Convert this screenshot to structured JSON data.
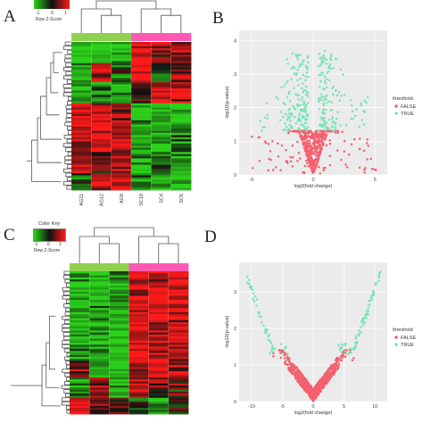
{
  "panels": {
    "a": {
      "letter": "A"
    },
    "b": {
      "letter": "B"
    },
    "c": {
      "letter": "C"
    },
    "d": {
      "letter": "D"
    }
  },
  "color_key_a": {
    "ticks": [
      "-1",
      "0",
      "1"
    ],
    "caption": "Row Z-Score",
    "colors": {
      "low": "#2bd11a",
      "mid": "#111111",
      "high": "#ff1a1a"
    }
  },
  "color_key_c": {
    "title": "Color Key",
    "ticks": [
      "-1",
      "0",
      "1"
    ],
    "caption": "Row Z-Score",
    "colors": {
      "low": "#2bd11a",
      "mid": "#111111",
      "high": "#ff1a1a"
    }
  },
  "group_colors": {
    "group1": "#8fd14f",
    "group2": "#ff59b4"
  },
  "chart_data": [
    {
      "panel": "A",
      "type": "heatmap",
      "columns": [
        "AG11",
        "AG12",
        "AG8",
        "SC10",
        "SC4",
        "SC6"
      ],
      "column_groups": [
        "group1",
        "group1",
        "group1",
        "group2",
        "group2",
        "group2"
      ],
      "rows_drawn": 70,
      "scale": [
        -1,
        1
      ],
      "clusters": [
        {
          "rows": 10,
          "values": [
            -1,
            -1,
            -0.9,
            0.9,
            0.6,
            0.4
          ]
        },
        {
          "rows": 9,
          "values": [
            -0.7,
            0.8,
            -0.4,
            0.9,
            -0.3,
            0.5
          ]
        },
        {
          "rows": 10,
          "values": [
            -0.9,
            -0.6,
            -0.8,
            0.1,
            0.7,
            0.8
          ]
        },
        {
          "rows": 11,
          "values": [
            0.9,
            0.8,
            0.7,
            -0.9,
            -0.8,
            -0.8
          ]
        },
        {
          "rows": 12,
          "values": [
            0.6,
            0.9,
            0.8,
            -0.7,
            -0.9,
            -0.5
          ]
        },
        {
          "rows": 10,
          "values": [
            0.8,
            0.2,
            0.6,
            -0.9,
            -0.4,
            -0.8
          ]
        },
        {
          "rows": 8,
          "values": [
            -0.1,
            0.7,
            0.9,
            -0.6,
            -0.8,
            -0.9
          ]
        }
      ]
    },
    {
      "panel": "B",
      "type": "scatter",
      "xlabel": "log2(fold change)",
      "ylabel": "-log10(p-value)",
      "xlim": [
        -6,
        6
      ],
      "ylim": [
        0,
        4.3
      ],
      "xticks": [
        "-5",
        "0",
        "5"
      ],
      "yticks": [
        "0",
        "1",
        "2",
        "3",
        "4"
      ],
      "threshold_y": 1.3,
      "legend": {
        "title": "threshold",
        "placement": "right",
        "entries": [
          "FALSE",
          "TRUE"
        ]
      },
      "series": [
        {
          "name": "FALSE",
          "color": "#f4606e",
          "points": 600
        },
        {
          "name": "TRUE",
          "color": "#79e3b5",
          "points": 300
        }
      ]
    },
    {
      "panel": "C",
      "type": "heatmap",
      "columns": [
        "",
        "",
        "",
        "",
        "",
        ""
      ],
      "column_groups": [
        "group1",
        "group1",
        "group1",
        "group2",
        "group2",
        "group2"
      ],
      "rows_drawn": 70,
      "scale": [
        -1,
        1
      ],
      "clusters": [
        {
          "rows": 44,
          "values": [
            -0.8,
            -0.8,
            -0.8,
            0.8,
            0.8,
            0.8
          ]
        },
        {
          "rows": 8,
          "values": [
            0.4,
            -0.9,
            -0.9,
            0.6,
            0.7,
            0.6
          ]
        },
        {
          "rows": 10,
          "values": [
            -0.6,
            0.5,
            -0.7,
            0.7,
            0.3,
            0.2
          ]
        },
        {
          "rows": 8,
          "values": [
            0.8,
            0.3,
            0.2,
            -0.2,
            -0.6,
            -0.1
          ]
        }
      ]
    },
    {
      "panel": "D",
      "type": "scatter",
      "xlabel": "log2(fold change)",
      "ylabel": "-log10(p-value)",
      "xlim": [
        -12,
        12
      ],
      "ylim": [
        0,
        3.8
      ],
      "xticks": [
        "-10",
        "-5",
        "0",
        "5",
        "10"
      ],
      "yticks": [
        "0",
        "1",
        "2",
        "3"
      ],
      "threshold_y": 1.3,
      "legend": {
        "title": "threshold",
        "placement": "right",
        "entries": [
          "FALSE",
          "TRUE"
        ]
      },
      "series": [
        {
          "name": "FALSE",
          "color": "#f4606e",
          "points": 700
        },
        {
          "name": "TRUE",
          "color": "#79e3b5",
          "points": 120
        }
      ]
    }
  ]
}
